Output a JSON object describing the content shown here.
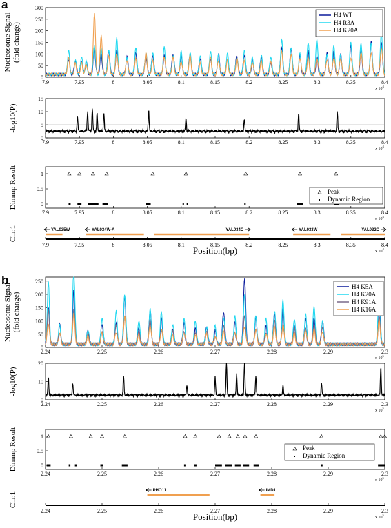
{
  "figure": {
    "panels": [
      {
        "letter": "a",
        "signal": {
          "ylabel": [
            "Nucleosome Signal",
            "(fold change)"
          ],
          "yticks": [
            "0",
            "50",
            "100",
            "150",
            "200",
            "250",
            "300"
          ],
          "ylim": [
            0,
            300
          ],
          "legend": [
            "H4 WT",
            "H4 R3A",
            "H4 K20A"
          ],
          "colors": [
            "#0b1b9c",
            "#22d8f0",
            "#f0a050"
          ],
          "mult": [
            1.0,
            1.15,
            0.8
          ],
          "peaks": [
            {
              "x": 7.934,
              "h": 80
            },
            {
              "x": 7.944,
              "h": 55
            },
            {
              "x": 7.953,
              "h": 60
            },
            {
              "x": 7.96,
              "h": 50
            },
            {
              "x": 7.972,
              "h": 100,
              "k20": 265
            },
            {
              "x": 7.982,
              "h": 95,
              "k20": 170
            },
            {
              "x": 7.993,
              "h": 95
            },
            {
              "x": 8.005,
              "h": 110,
              "r3": 155
            },
            {
              "x": 8.02,
              "h": 70
            },
            {
              "x": 8.033,
              "h": 90
            },
            {
              "x": 8.048,
              "h": 80,
              "k20": 90
            },
            {
              "x": 8.058,
              "h": 75,
              "r3": 95
            },
            {
              "x": 8.075,
              "h": 90
            },
            {
              "x": 8.088,
              "h": 80
            },
            {
              "x": 8.1,
              "h": 75
            },
            {
              "x": 8.113,
              "h": 85
            },
            {
              "x": 8.128,
              "h": 65
            },
            {
              "x": 8.143,
              "h": 80
            },
            {
              "x": 8.155,
              "h": 75
            },
            {
              "x": 8.168,
              "h": 70
            },
            {
              "x": 8.182,
              "h": 75
            },
            {
              "x": 8.193,
              "h": 80
            },
            {
              "x": 8.205,
              "h": 60
            },
            {
              "x": 8.218,
              "h": 70
            },
            {
              "x": 8.232,
              "h": 60
            },
            {
              "x": 8.248,
              "h": 110,
              "r3": 150
            },
            {
              "x": 8.262,
              "h": 110,
              "r3": 120
            },
            {
              "x": 8.275,
              "h": 80
            },
            {
              "x": 8.287,
              "h": 95,
              "r3": 140
            },
            {
              "x": 8.3,
              "h": 85,
              "r3": 150
            },
            {
              "x": 8.315,
              "h": 80
            },
            {
              "x": 8.325,
              "h": 95
            },
            {
              "x": 8.335,
              "h": 80
            },
            {
              "x": 8.35,
              "h": 110
            },
            {
              "x": 8.365,
              "h": 110
            },
            {
              "x": 8.38,
              "h": 120
            },
            {
              "x": 8.395,
              "h": 140
            }
          ]
        },
        "pval": {
          "ylabel": "-log10(P)",
          "yticks": [
            "0",
            "5",
            "10",
            "15"
          ],
          "ylim": [
            0,
            15
          ],
          "threshold": 5,
          "spikes": [
            {
              "x": 7.947,
              "h": 6
            },
            {
              "x": 7.962,
              "h": 8
            },
            {
              "x": 7.969,
              "h": 9
            },
            {
              "x": 7.976,
              "h": 7
            },
            {
              "x": 7.986,
              "h": 7
            },
            {
              "x": 8.052,
              "h": 8.5
            },
            {
              "x": 8.107,
              "h": 5
            },
            {
              "x": 8.193,
              "h": 5
            },
            {
              "x": 8.273,
              "h": 7
            },
            {
              "x": 8.33,
              "h": 7.5
            }
          ]
        },
        "dimmp": {
          "ylabel": "Dimmp Result",
          "yticks": [
            "0",
            "0.5",
            "1"
          ],
          "peaks": [
            7.935,
            7.95,
            7.97,
            7.99,
            8.058,
            8.107,
            8.195,
            8.275,
            8.328
          ],
          "regions": [
            [
              7.934,
              7.937
            ],
            [
              7.947,
              7.953
            ],
            [
              7.963,
              7.978
            ],
            [
              7.984,
              7.992
            ],
            [
              8.048,
              8.055
            ],
            [
              8.102,
              8.104
            ],
            [
              8.108,
              8.11
            ],
            [
              8.193,
              8.195
            ],
            [
              8.27,
              8.28
            ],
            [
              8.325,
              8.332
            ]
          ],
          "legend": [
            "Peak",
            "Dynamic Region"
          ]
        },
        "genes": [
          {
            "name": "YAL035W",
            "start": 7.9,
            "end": 7.925,
            "dir": "left"
          },
          {
            "name": "YAL034W-A",
            "start": 7.96,
            "end": 8.045,
            "dir": "left"
          },
          {
            "name": "YAL034C",
            "start": 8.06,
            "end": 8.2,
            "dir": "right"
          },
          {
            "name": "YAL033W",
            "start": 8.265,
            "end": 8.32,
            "dir": "left"
          },
          {
            "name": "YAL032C",
            "start": 8.335,
            "end": 8.4,
            "dir": "right"
          }
        ],
        "chr_label": "Chr.1",
        "xticks": [
          "7.9",
          "7.95",
          "8",
          "8.05",
          "8.1",
          "8.15",
          "8.2",
          "8.25",
          "8.3",
          "8.35",
          "8.4"
        ],
        "xlim": [
          7.9,
          8.4
        ],
        "xexp": "x 10",
        "xexp_pow": "4",
        "xlabel": "Position(bp)"
      },
      {
        "letter": "b",
        "signal": {
          "ylabel": [
            "Nucleosome Signal",
            "(fold change)"
          ],
          "yticks": [
            "0",
            "50",
            "100",
            "150",
            "200",
            "250"
          ],
          "ylim": [
            0,
            265
          ],
          "legend": [
            "H4 K5A",
            "H4 K20A",
            "H4 K91A",
            "H4 K16A"
          ],
          "colors": [
            "#0b1b9c",
            "#22d8f0",
            "#7a6a8a",
            "#f0a050"
          ],
          "mult": [
            0.8,
            1.0,
            0.55,
            0.45
          ],
          "peaks": [
            {
              "x": 2.2405,
              "h": 210
            },
            {
              "x": 2.2425,
              "h": 80
            },
            {
              "x": 2.245,
              "h": 250
            },
            {
              "x": 2.2475,
              "h": 60
            },
            {
              "x": 2.25,
              "h": 90
            },
            {
              "x": 2.2525,
              "h": 115
            },
            {
              "x": 2.254,
              "h": 195
            },
            {
              "x": 2.2565,
              "h": 80
            },
            {
              "x": 2.2585,
              "h": 150
            },
            {
              "x": 2.2605,
              "h": 110
            },
            {
              "x": 2.2625,
              "h": 75
            },
            {
              "x": 2.2645,
              "h": 90
            },
            {
              "x": 2.2665,
              "h": 80
            },
            {
              "x": 2.2685,
              "h": 75
            },
            {
              "x": 2.27,
              "h": 60
            },
            {
              "x": 2.2715,
              "h": 105,
              "k5": 125
            },
            {
              "x": 2.2735,
              "h": 95
            },
            {
              "x": 2.2752,
              "h": 170,
              "k5": 255
            },
            {
              "x": 2.2772,
              "h": 110
            },
            {
              "x": 2.279,
              "h": 85
            },
            {
              "x": 2.2805,
              "h": 140
            },
            {
              "x": 2.282,
              "h": 150
            },
            {
              "x": 2.284,
              "h": 95
            },
            {
              "x": 2.286,
              "h": 110
            },
            {
              "x": 2.2875,
              "h": 130
            },
            {
              "x": 2.289,
              "h": 100
            },
            {
              "x": 2.299,
              "h": 195
            }
          ]
        },
        "pval": {
          "ylabel": "-log10(P)",
          "yticks": [
            "0",
            "10",
            "20"
          ],
          "ylim": [
            0,
            20
          ],
          "threshold": 3,
          "spikes": [
            {
              "x": 2.2405,
              "h": 10
            },
            {
              "x": 2.2448,
              "h": 7
            },
            {
              "x": 2.2538,
              "h": 11
            },
            {
              "x": 2.265,
              "h": 6
            },
            {
              "x": 2.27,
              "h": 10
            },
            {
              "x": 2.272,
              "h": 20
            },
            {
              "x": 2.2738,
              "h": 12
            },
            {
              "x": 2.2752,
              "h": 20
            },
            {
              "x": 2.2772,
              "h": 11
            },
            {
              "x": 2.282,
              "h": 6
            },
            {
              "x": 2.2888,
              "h": 7
            },
            {
              "x": 2.2993,
              "h": 16
            }
          ]
        },
        "dimmp": {
          "ylabel": "Dimmp Result",
          "yticks": [
            "0",
            "0.5",
            "1"
          ],
          "peaks": [
            2.2405,
            2.2445,
            2.248,
            2.25,
            2.254,
            2.2647,
            2.2665,
            2.2707,
            2.2725,
            2.274,
            2.2753,
            2.2772,
            2.2888,
            2.2993,
            2.3
          ],
          "regions": [
            [
              2.2402,
              2.2409
            ],
            [
              2.2441,
              2.2444
            ],
            [
              2.2452,
              2.2456
            ],
            [
              2.2497,
              2.2502
            ],
            [
              2.2535,
              2.2545
            ],
            [
              2.2645,
              2.2647
            ],
            [
              2.2663,
              2.2667
            ],
            [
              2.27,
              2.2712
            ],
            [
              2.2718,
              2.273
            ],
            [
              2.2735,
              2.2745
            ],
            [
              2.275,
              2.276
            ],
            [
              2.2768,
              2.2778
            ],
            [
              2.2887,
              2.289
            ],
            [
              2.2988,
              2.3
            ]
          ],
          "legend": [
            "Peak",
            "Dynamic Region"
          ]
        },
        "genes": [
          {
            "name": "PHO11",
            "start": 2.258,
            "end": 2.269,
            "dir": "left"
          },
          {
            "name": "IMD1",
            "start": 2.278,
            "end": 2.2805,
            "dir": "left"
          }
        ],
        "chr_label": "Chr.1",
        "xticks": [
          "2.24",
          "2.25",
          "2.26",
          "2.27",
          "2.28",
          "2.29",
          "2.3"
        ],
        "xlim": [
          2.24,
          2.3
        ],
        "xexp": "x 10",
        "xexp_pow": "5",
        "xlabel": "Position(bp)"
      }
    ]
  }
}
